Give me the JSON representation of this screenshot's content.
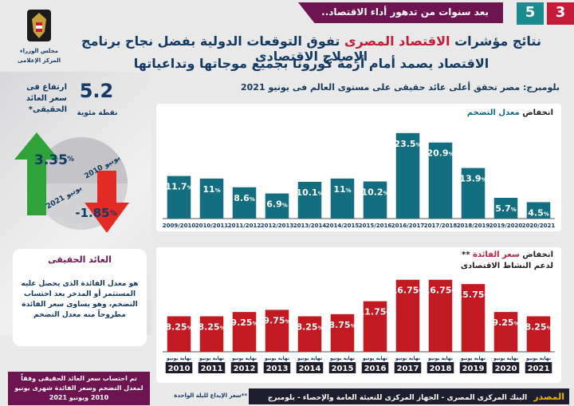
{
  "header": {
    "banner": "بعد سنوات من تدهور أداء الاقتصاد..",
    "page_left": "5",
    "page_right": "3",
    "title_line1_pre": "نتائج مؤشرات ",
    "title_line1_hl": "الاقتصاد المصرى",
    "title_line1_post": " تفوق التوقعات الدولية بفضل نجاح برنامج الإصلاح الاقتصادى",
    "title_line2": "الاقتصاد يصمد أمام أزمة كورونا بجميع موجاتها وتداعياتها",
    "subtitle": "بلومبرج: مصر تحقق أعلى عائد حقيقى على مستوى العالم فى يونيو 2021"
  },
  "logo": {
    "icon": "eagle-emblem-icon",
    "line1": "مجلس الوزراء",
    "line2": "المركز الإعلامى"
  },
  "stat": {
    "value": "5.2",
    "unit": "نقطة مئوية",
    "label": "ارتفاع فى سعر العائد الحقيقى*"
  },
  "arrows": {
    "up_value": "3.35",
    "up_label": "يونيو 2021",
    "down_value": "-1.85",
    "down_label": "يونيو 2010",
    "up_color": "#2fa33a",
    "down_color": "#e22b24"
  },
  "definition": {
    "title": "العائد الحقيقى",
    "text": "هو معدل الفائدة الذى يحصل عليه المستثمر أو المدخر بعد احتساب التضخم، وهو يساوى سعر الفائدة مطروحاً منه معدل التضخم"
  },
  "note": "تم احتساب سعر العائد الحقيقى وفقاً لمعدل التضخم وسعر الفائدة شهرى يونيو 2010 ويونيو 2021",
  "footnote": "**سعر الإيداع لليلة الواحدة",
  "source": {
    "label": "المصدر",
    "text": "البنك المركزى المصرى - الجهاز المركزى للتعبئة العامة والإحصاء - بلومبرج"
  },
  "chart_data": [
    {
      "type": "bar",
      "title_pre": "انخفاض ",
      "title_hl": "معدل التضخم",
      "categories": [
        "2009/2010",
        "2010/2011",
        "2011/2012",
        "2012/2013",
        "2013/2014",
        "2014/2015",
        "2015/2016",
        "2016/2017",
        "2017/2018",
        "2018/2019",
        "2019/2020",
        "2020/2021"
      ],
      "values": [
        11.7,
        11,
        8.6,
        6.9,
        10.1,
        11,
        10.2,
        23.5,
        20.9,
        13.9,
        5.7,
        4.5
      ],
      "value_labels": [
        "11.7",
        "11",
        "8.6",
        "6.9",
        "10.1",
        "11",
        "10.2",
        "23.5",
        "20.9",
        "13.9",
        "5.7",
        "4.5"
      ],
      "unit": "%",
      "color": "#136e80",
      "ylim": [
        0,
        25
      ]
    },
    {
      "type": "bar",
      "title_pre": "انخفاض ",
      "title_hl": "سعر الفائدة",
      "title_post": " **",
      "subtitle": "لدعم النشاط الاقتصادى",
      "period_label": "نهاية يونيو",
      "categories": [
        "2010",
        "2011",
        "2012",
        "2013",
        "2014",
        "2015",
        "2016",
        "2017",
        "2018",
        "2019",
        "2020",
        "2021"
      ],
      "values": [
        8.25,
        8.25,
        9.25,
        9.75,
        8.25,
        8.75,
        11.75,
        16.75,
        16.75,
        15.75,
        9.25,
        8.25
      ],
      "value_labels": [
        "8.25",
        "8.25",
        "9.25",
        "9.75",
        "8.25",
        "8.75",
        "11.75",
        "16.75",
        "16.75",
        "15.75",
        "9.25",
        "8.25"
      ],
      "unit": "%",
      "color": "#c21a22",
      "ylim": [
        0,
        18
      ]
    }
  ]
}
